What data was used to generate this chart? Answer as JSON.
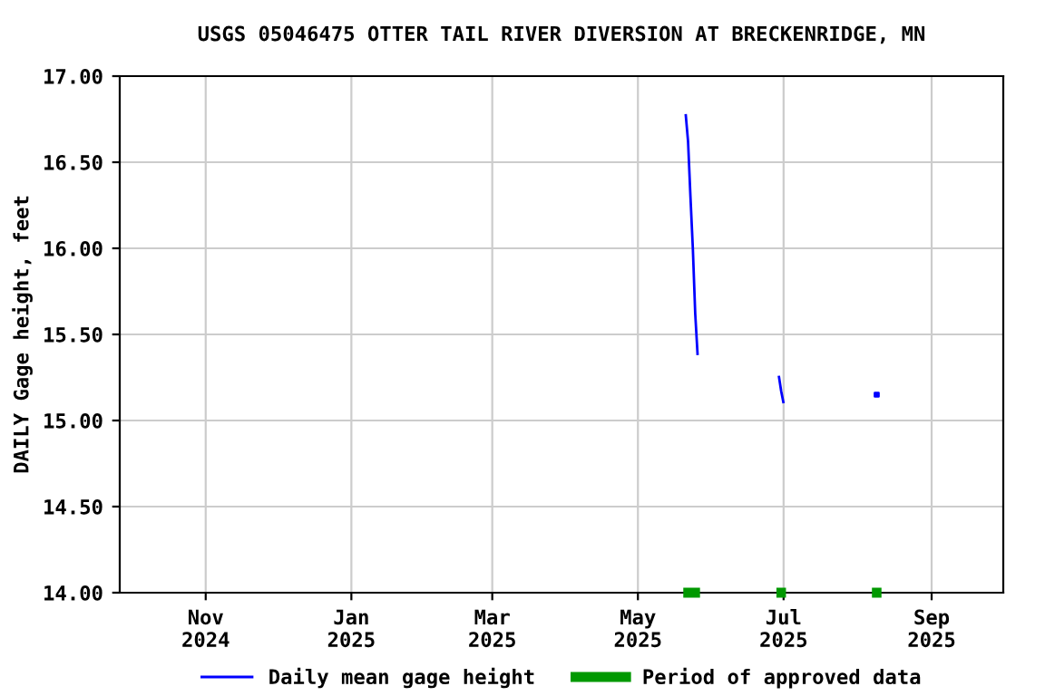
{
  "chart_data": {
    "type": "line",
    "title": "USGS 05046475 OTTER TAIL RIVER DIVERSION AT BRECKENRIDGE, MN",
    "ylabel": "DAILY Gage height, feet",
    "series": [
      {
        "name": "Daily mean gage height",
        "color": "#0000ff",
        "x": [
          "2025-05-21",
          "2025-05-22",
          "2025-05-23",
          "2025-05-24",
          "2025-05-25",
          "2025-05-26"
        ],
        "values": [
          16.78,
          16.62,
          16.3,
          16.0,
          15.62,
          15.38
        ]
      },
      {
        "color": "#0000ff",
        "x": [
          "2025-06-29",
          "2025-06-30",
          "2025-07-01"
        ],
        "values": [
          15.26,
          15.17,
          15.1
        ]
      },
      {
        "type": "scatter",
        "color": "#0000ff",
        "x": [
          "2025-08-09"
        ],
        "values": [
          15.15
        ]
      },
      {
        "name": "Period of approved data",
        "color": "#009900",
        "x": [
          "2025-05-20",
          "2025-05-27",
          "2025-06-15",
          "2025-06-28",
          "2025-07-02",
          "2025-07-20",
          "2025-08-07",
          "2025-08-11"
        ],
        "values": [
          14.0,
          14.0,
          null,
          14.0,
          14.0,
          null,
          14.0,
          14.0
        ]
      }
    ],
    "xlim": [
      "2024-09-26",
      "2025-10-01"
    ],
    "xticks": [
      {
        "value": "2024-11-01",
        "label": "Nov\n2024"
      },
      {
        "value": "2025-01-01",
        "label": "Jan\n2025"
      },
      {
        "value": "2025-03-01",
        "label": "Mar\n2025"
      },
      {
        "value": "2025-05-01",
        "label": "May\n2025"
      },
      {
        "value": "2025-07-01",
        "label": "Jul\n2025"
      },
      {
        "value": "2025-09-01",
        "label": "Sep\n2025"
      }
    ],
    "ylim": [
      14,
      17
    ],
    "yticks": [
      {
        "value": 14,
        "label": "14.00"
      },
      {
        "value": 14.5,
        "label": "14.50"
      },
      {
        "value": 15,
        "label": "15.00"
      },
      {
        "value": 15.5,
        "label": "15.50"
      },
      {
        "value": 16,
        "label": "16.00"
      },
      {
        "value": 16.5,
        "label": "16.50"
      },
      {
        "value": 17,
        "label": "17.00"
      }
    ],
    "grid": true,
    "legend": "bottom"
  }
}
